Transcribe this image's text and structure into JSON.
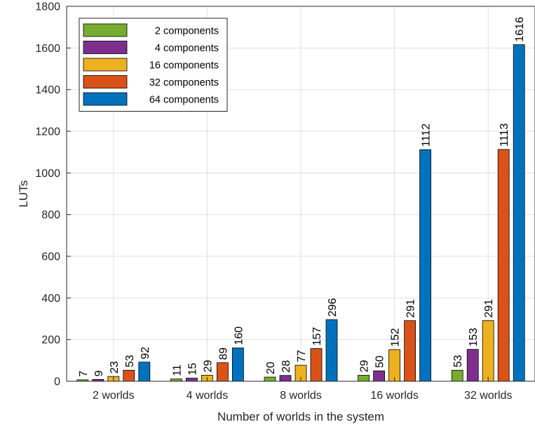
{
  "chart_data": {
    "type": "bar",
    "title": "",
    "xlabel": "Number of worlds in the system",
    "ylabel": "LUTs",
    "categories": [
      "2 worlds",
      "4 worlds",
      "8 worlds",
      "16 worlds",
      "32 worlds"
    ],
    "ylim": [
      0,
      1800
    ],
    "yticks": [
      0,
      200,
      400,
      600,
      800,
      1000,
      1200,
      1400,
      1600,
      1800
    ],
    "grid": true,
    "legend_position": "top-left",
    "series": [
      {
        "name": "2 components",
        "color": "#77ac30",
        "values": [
          7,
          11,
          20,
          29,
          53
        ]
      },
      {
        "name": "4 components",
        "color": "#7e2f8e",
        "values": [
          9,
          15,
          28,
          50,
          153
        ]
      },
      {
        "name": "16 components",
        "color": "#edb120",
        "values": [
          23,
          29,
          77,
          152,
          291
        ]
      },
      {
        "name": "32 components",
        "color": "#d95319",
        "values": [
          53,
          89,
          157,
          291,
          1113
        ]
      },
      {
        "name": "64 components",
        "color": "#0072bd",
        "values": [
          92,
          160,
          296,
          1112,
          1616
        ]
      }
    ]
  }
}
